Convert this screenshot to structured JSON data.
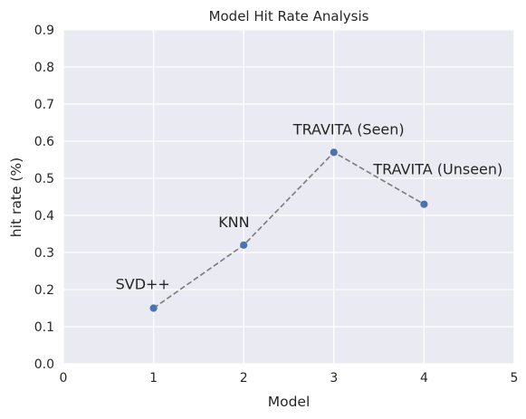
{
  "chart_data": {
    "type": "line",
    "title": "Model Hit Rate Analysis",
    "xlabel": "Model",
    "ylabel": "hit rate (%)",
    "xlim": [
      0,
      5
    ],
    "ylim": [
      0,
      0.9
    ],
    "x_ticks": [
      "0",
      "1",
      "2",
      "3",
      "4",
      "5"
    ],
    "y_ticks": [
      "0.0",
      "0.1",
      "0.2",
      "0.3",
      "0.4",
      "0.5",
      "0.6",
      "0.7",
      "0.8",
      "0.9"
    ],
    "grid": true,
    "line_style": "dashed",
    "colors": {
      "background": "#eaeaf2",
      "grid": "#ffffff",
      "line": "#808080",
      "marker": "#4c72b0"
    },
    "series": [
      {
        "x": [
          1,
          2,
          3,
          4
        ],
        "values": [
          0.15,
          0.32,
          0.57,
          0.43
        ],
        "labels": [
          "SVD++",
          "KNN",
          "TRAVITA (Seen)",
          "TRAVITA (Unseen)"
        ]
      }
    ]
  }
}
